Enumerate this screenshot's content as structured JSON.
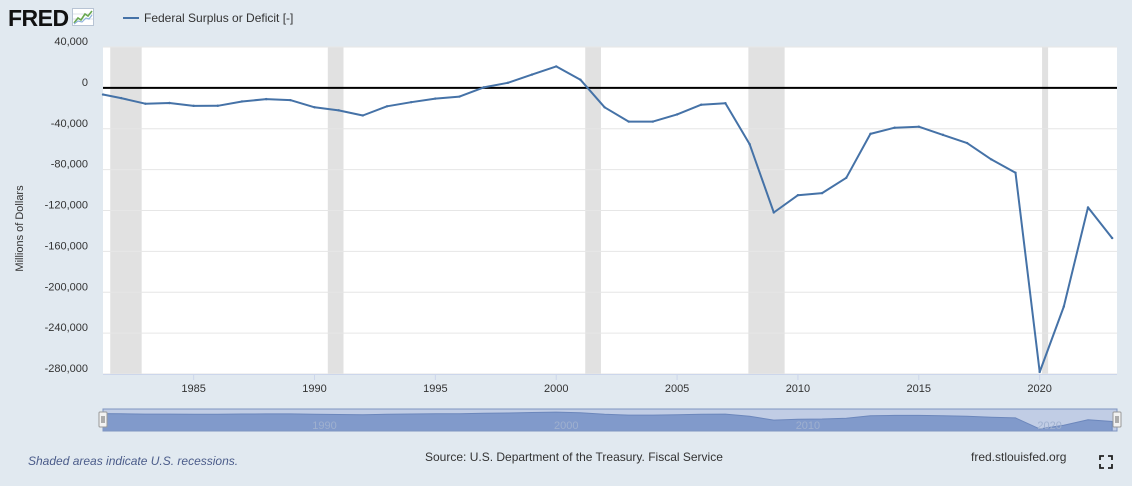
{
  "brand": {
    "logo_text": "FRED"
  },
  "legend": {
    "series_label": "Federal Surplus or Deficit [-]",
    "color": "#4572a7"
  },
  "footer": {
    "recession_note": "Shaded areas indicate U.S. recessions.",
    "source": "Source: U.S. Department of the Treasury. Fiscal Service",
    "url": "fred.stlouisfed.org"
  },
  "icons": {
    "logo_graph": "line-graph-icon",
    "fullscreen": "fullscreen-icon"
  },
  "colors": {
    "background": "#e1e9f0",
    "plot_background": "#ffffff",
    "series": "#4572a7",
    "recession": "#e1e1e1",
    "navigator": "#8fa6cf"
  },
  "chart_data": {
    "type": "line",
    "title": "",
    "xlabel": "",
    "ylabel": "Millions of Dollars",
    "xlim": [
      1981.25,
      2023.2
    ],
    "ylim": [
      -280000,
      40000
    ],
    "y_ticks": [
      40000,
      0,
      -40000,
      -80000,
      -120000,
      -160000,
      -200000,
      -240000,
      -280000
    ],
    "y_tick_labels": [
      "40,000",
      "0",
      "-40,000",
      "-80,000",
      "-120,000",
      "-160,000",
      "-200,000",
      "-240,000",
      "-280,000"
    ],
    "x_ticks": [
      1985,
      1990,
      1995,
      2000,
      2005,
      2010,
      2015,
      2020
    ],
    "x_tick_labels": [
      "1985",
      "1990",
      "1995",
      "2000",
      "2005",
      "2010",
      "2015",
      "2020"
    ],
    "zero_line": 0,
    "grid": true,
    "recessions": [
      [
        1981.55,
        1982.85
      ],
      [
        1990.55,
        1991.2
      ],
      [
        2001.2,
        2001.85
      ],
      [
        2007.95,
        2009.45
      ],
      [
        2020.1,
        2020.35
      ]
    ],
    "navigator_labels": [
      "1990",
      "2000",
      "2010",
      "2020"
    ],
    "series": [
      {
        "name": "Federal Surplus or Deficit [-]",
        "x": [
          1981.25,
          1982,
          1983,
          1984,
          1985,
          1986,
          1987,
          1988,
          1989,
          1990,
          1991,
          1992,
          1993,
          1994,
          1995,
          1996,
          1997,
          1998,
          1999,
          2000,
          2001,
          2002,
          2003,
          2004,
          2005,
          2006,
          2007,
          2008,
          2009,
          2010,
          2011,
          2012,
          2013,
          2014,
          2015,
          2016,
          2017,
          2018,
          2019,
          2020,
          2021,
          2022,
          2023
        ],
        "y": [
          -6500,
          -10000,
          -15500,
          -14800,
          -17600,
          -17500,
          -13300,
          -11000,
          -12000,
          -19000,
          -22000,
          -27000,
          -18000,
          -14000,
          -10500,
          -8500,
          500,
          5000,
          13000,
          21000,
          8000,
          -19000,
          -33000,
          -33000,
          -26000,
          -16500,
          -15000,
          -55000,
          -122000,
          -105000,
          -103000,
          -88000,
          -45000,
          -39000,
          -38000,
          -46000,
          -54000,
          -70000,
          -83000,
          -278000,
          -214000,
          -117000,
          -147000
        ]
      }
    ]
  }
}
